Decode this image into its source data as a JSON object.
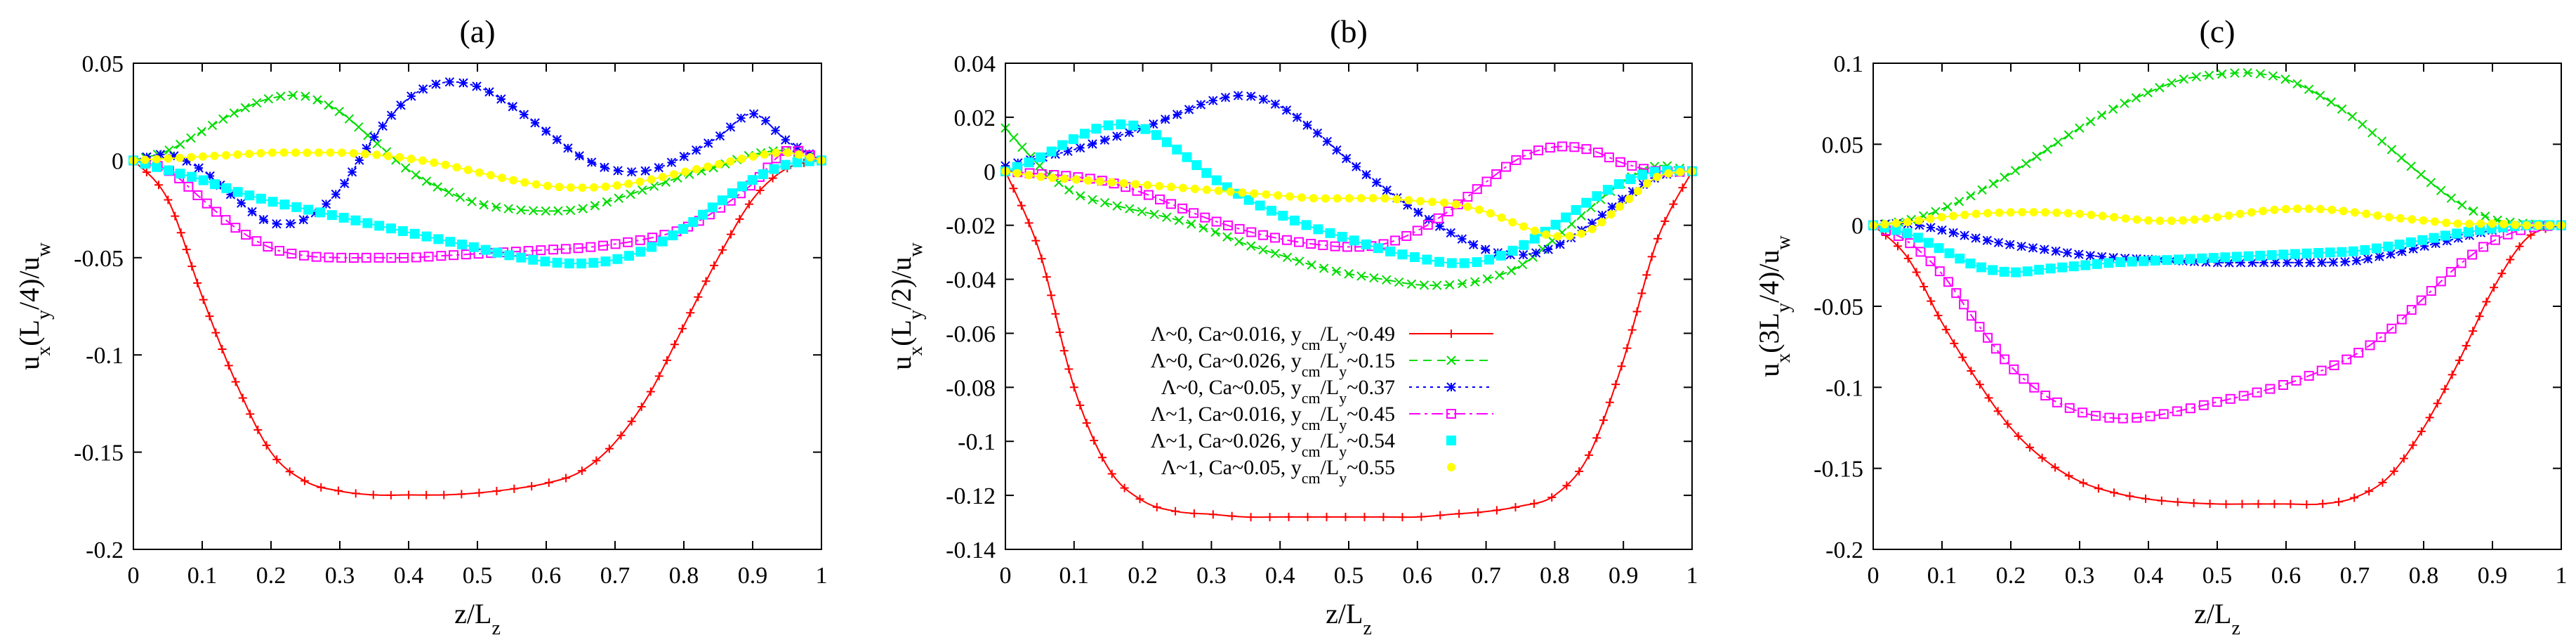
{
  "series_styles": [
    {
      "name": "Λ~0, Ca~0.016",
      "color": "#ff0000",
      "marker": "plus",
      "dash": "none"
    },
    {
      "name": "Λ~0, Ca~0.026",
      "color": "#00dd00",
      "marker": "x",
      "dash": "12,8"
    },
    {
      "name": "Λ~0, Ca~0.05",
      "color": "#0000ff",
      "marker": "star",
      "dash": "4,6"
    },
    {
      "name": "Λ~1, Ca~0.016",
      "color": "#ff00ff",
      "marker": "opensquare",
      "dash": "16,6,4,6"
    },
    {
      "name": "Λ~1, Ca~0.026",
      "color": "#00ffff",
      "marker": "filledsquare",
      "dash": "none"
    },
    {
      "name": "Λ~1, Ca~0.05",
      "color": "#ffff00",
      "marker": "circle",
      "dash": "none"
    }
  ],
  "legend_entries": [
    {
      "pre": "Λ~0, Ca~0.016, y",
      "sub": "cm",
      "mid": "/L",
      "sub2": "y",
      "post": "~0.49"
    },
    {
      "pre": "Λ~0, Ca~0.026, y",
      "sub": "cm",
      "mid": "/L",
      "sub2": "y",
      "post": "~0.15"
    },
    {
      "pre": "Λ~0, Ca~0.05, y",
      "sub": "cm",
      "mid": "/L",
      "sub2": "y",
      "post": "~0.37"
    },
    {
      "pre": "Λ~1, Ca~0.016, y",
      "sub": "cm",
      "mid": "/L",
      "sub2": "y",
      "post": "~0.45"
    },
    {
      "pre": "Λ~1, Ca~0.026, y",
      "sub": "cm",
      "mid": "/L",
      "sub2": "y",
      "post": "~0.54"
    },
    {
      "pre": "Λ~1, Ca~0.05, y",
      "sub": "cm",
      "mid": "/L",
      "sub2": "y",
      "post": "~0.55"
    }
  ],
  "chart_data": [
    {
      "type": "line",
      "title": "(a)",
      "xlabel": {
        "main": "z/L",
        "sub": "z"
      },
      "ylabel": {
        "p1": "u",
        "s1": "x",
        "p2": "(L",
        "s2": "y",
        "p3": "/4)/u",
        "s3": "w"
      },
      "xlim": [
        0,
        1
      ],
      "ylim": [
        -0.2,
        0.05
      ],
      "xticks": [
        0,
        0.1,
        0.2,
        0.3,
        0.4,
        0.5,
        0.6,
        0.7,
        0.8,
        0.9,
        1
      ],
      "xtick_labels": [
        "0",
        "0.1",
        "0.2",
        "0.3",
        "0.4",
        "0.5",
        "0.6",
        "0.7",
        "0.8",
        "0.9",
        "1"
      ],
      "yticks": [
        -0.2,
        -0.15,
        -0.1,
        -0.05,
        0,
        0.05
      ],
      "ytick_labels": [
        "-0.2",
        "-0.15",
        "-0.1",
        "-0.05",
        "0",
        "0.05"
      ],
      "x": [
        0,
        0.05,
        0.1,
        0.15,
        0.2,
        0.25,
        0.3,
        0.35,
        0.4,
        0.45,
        0.5,
        0.55,
        0.6,
        0.65,
        0.7,
        0.75,
        0.8,
        0.85,
        0.9,
        0.95,
        1
      ],
      "series": [
        {
          "values": [
            0,
            -0.02,
            -0.07,
            -0.115,
            -0.15,
            -0.165,
            -0.17,
            -0.172,
            -0.172,
            -0.172,
            -0.171,
            -0.169,
            -0.166,
            -0.16,
            -0.145,
            -0.12,
            -0.085,
            -0.05,
            -0.02,
            -0.004,
            0
          ]
        },
        {
          "values": [
            0,
            0.005,
            0.015,
            0.025,
            0.032,
            0.033,
            0.025,
            0.01,
            -0.005,
            -0.015,
            -0.022,
            -0.025,
            -0.026,
            -0.025,
            -0.02,
            -0.014,
            -0.008,
            -0.003,
            0.003,
            0.005,
            0
          ]
        },
        {
          "values": [
            0,
            0.003,
            -0.005,
            -0.02,
            -0.032,
            -0.03,
            -0.015,
            0.012,
            0.032,
            0.04,
            0.038,
            0.028,
            0.015,
            0.002,
            -0.005,
            -0.005,
            0.002,
            0.012,
            0.024,
            0.01,
            0
          ]
        },
        {
          "values": [
            0,
            -0.005,
            -0.02,
            -0.035,
            -0.045,
            -0.049,
            -0.05,
            -0.05,
            -0.05,
            -0.049,
            -0.048,
            -0.047,
            -0.046,
            -0.045,
            -0.043,
            -0.04,
            -0.035,
            -0.025,
            -0.012,
            0.005,
            0
          ]
        },
        {
          "values": [
            0,
            -0.005,
            -0.01,
            -0.016,
            -0.021,
            -0.025,
            -0.029,
            -0.033,
            -0.037,
            -0.041,
            -0.045,
            -0.049,
            -0.052,
            -0.053,
            -0.051,
            -0.045,
            -0.035,
            -0.022,
            -0.01,
            -0.002,
            0
          ]
        },
        {
          "values": [
            0,
            0.001,
            0.002,
            0.003,
            0.004,
            0.004,
            0.004,
            0.003,
            0.001,
            -0.002,
            -0.006,
            -0.01,
            -0.013,
            -0.014,
            -0.013,
            -0.01,
            -0.006,
            -0.002,
            0.002,
            0.004,
            0
          ]
        }
      ]
    },
    {
      "type": "line",
      "title": "(b)",
      "xlabel": {
        "main": "z/L",
        "sub": "z"
      },
      "ylabel": {
        "p1": "u",
        "s1": "x",
        "p2": "(L",
        "s2": "y",
        "p3": "/2)/u",
        "s3": "w"
      },
      "xlim": [
        0,
        1
      ],
      "ylim": [
        -0.14,
        0.04
      ],
      "xticks": [
        0,
        0.1,
        0.2,
        0.3,
        0.4,
        0.5,
        0.6,
        0.7,
        0.8,
        0.9,
        1
      ],
      "xtick_labels": [
        "0",
        "0.1",
        "0.2",
        "0.3",
        "0.4",
        "0.5",
        "0.6",
        "0.7",
        "0.8",
        "0.9",
        "1"
      ],
      "yticks": [
        -0.14,
        -0.12,
        -0.1,
        -0.08,
        -0.06,
        -0.04,
        -0.02,
        0,
        0.02,
        0.04
      ],
      "ytick_labels": [
        "-0.14",
        "-0.12",
        "-0.1",
        "-0.08",
        "-0.06",
        "-0.04",
        "-0.02",
        "0",
        "0.02",
        "0.04"
      ],
      "x": [
        0,
        0.05,
        0.1,
        0.15,
        0.2,
        0.25,
        0.3,
        0.35,
        0.4,
        0.45,
        0.5,
        0.55,
        0.6,
        0.65,
        0.7,
        0.75,
        0.8,
        0.85,
        0.9,
        0.95,
        1
      ],
      "series": [
        {
          "values": [
            0,
            -0.03,
            -0.08,
            -0.11,
            -0.122,
            -0.126,
            -0.127,
            -0.128,
            -0.128,
            -0.128,
            -0.128,
            -0.128,
            -0.128,
            -0.127,
            -0.126,
            -0.124,
            -0.12,
            -0.105,
            -0.07,
            -0.025,
            0
          ]
        },
        {
          "values": [
            0.016,
            0.002,
            -0.008,
            -0.012,
            -0.015,
            -0.018,
            -0.022,
            -0.027,
            -0.031,
            -0.035,
            -0.038,
            -0.04,
            -0.042,
            -0.042,
            -0.04,
            -0.035,
            -0.025,
            -0.014,
            -0.004,
            0.002,
            0
          ]
        },
        {
          "values": [
            0.002,
            0.005,
            0.008,
            0.012,
            0.016,
            0.021,
            0.026,
            0.028,
            0.024,
            0.015,
            0.004,
            -0.006,
            -0.015,
            -0.023,
            -0.029,
            -0.031,
            -0.028,
            -0.02,
            -0.01,
            -0.002,
            0
          ]
        },
        {
          "values": [
            0,
            -0.001,
            -0.002,
            -0.004,
            -0.008,
            -0.013,
            -0.018,
            -0.022,
            -0.025,
            -0.027,
            -0.028,
            -0.027,
            -0.022,
            -0.014,
            -0.004,
            0.005,
            0.009,
            0.008,
            0.003,
            0,
            0
          ]
        },
        {
          "values": [
            0,
            0.005,
            0.012,
            0.017,
            0.016,
            0.008,
            -0.002,
            -0.01,
            -0.016,
            -0.021,
            -0.025,
            -0.029,
            -0.032,
            -0.034,
            -0.033,
            -0.028,
            -0.02,
            -0.011,
            -0.004,
            0,
            0
          ]
        },
        {
          "values": [
            0,
            -0.002,
            -0.003,
            -0.004,
            -0.005,
            -0.006,
            -0.007,
            -0.008,
            -0.009,
            -0.01,
            -0.01,
            -0.01,
            -0.011,
            -0.012,
            -0.015,
            -0.02,
            -0.024,
            -0.022,
            -0.012,
            -0.002,
            0
          ]
        }
      ]
    },
    {
      "type": "line",
      "title": "(c)",
      "xlabel": {
        "main": "z/L",
        "sub": "z"
      },
      "ylabel": {
        "p1": "u",
        "s1": "x",
        "p2": "(3L",
        "s2": "y",
        "p3": "/4)/u",
        "s3": "w"
      },
      "xlim": [
        0,
        1
      ],
      "ylim": [
        -0.2,
        0.1
      ],
      "xticks": [
        0,
        0.1,
        0.2,
        0.3,
        0.4,
        0.5,
        0.6,
        0.7,
        0.8,
        0.9,
        1
      ],
      "xtick_labels": [
        "0",
        "0.1",
        "0.2",
        "0.3",
        "0.4",
        "0.5",
        "0.6",
        "0.7",
        "0.8",
        "0.9",
        "1"
      ],
      "yticks": [
        -0.2,
        -0.15,
        -0.1,
        -0.05,
        0,
        0.05,
        0.1
      ],
      "ytick_labels": [
        "-0.2",
        "-0.15",
        "-0.1",
        "-0.05",
        "0",
        "0.05",
        "0.1"
      ],
      "x": [
        0,
        0.05,
        0.1,
        0.15,
        0.2,
        0.25,
        0.3,
        0.35,
        0.4,
        0.45,
        0.5,
        0.55,
        0.6,
        0.65,
        0.7,
        0.75,
        0.8,
        0.85,
        0.9,
        0.95,
        1
      ],
      "series": [
        {
          "values": [
            0,
            -0.02,
            -0.06,
            -0.095,
            -0.125,
            -0.145,
            -0.158,
            -0.165,
            -0.169,
            -0.171,
            -0.172,
            -0.172,
            -0.172,
            -0.172,
            -0.168,
            -0.155,
            -0.125,
            -0.085,
            -0.04,
            -0.008,
            0
          ]
        },
        {
          "values": [
            0,
            0.003,
            0.01,
            0.02,
            0.032,
            0.046,
            0.06,
            0.072,
            0.082,
            0.09,
            0.093,
            0.094,
            0.09,
            0.08,
            0.066,
            0.048,
            0.03,
            0.014,
            0.004,
            0.001,
            0
          ]
        },
        {
          "values": [
            0,
            0.001,
            -0.003,
            -0.008,
            -0.012,
            -0.015,
            -0.018,
            -0.02,
            -0.021,
            -0.022,
            -0.023,
            -0.023,
            -0.023,
            -0.023,
            -0.022,
            -0.018,
            -0.013,
            -0.008,
            -0.003,
            0,
            0
          ]
        },
        {
          "values": [
            0,
            -0.01,
            -0.03,
            -0.06,
            -0.087,
            -0.105,
            -0.115,
            -0.119,
            -0.118,
            -0.114,
            -0.109,
            -0.104,
            -0.098,
            -0.09,
            -0.08,
            -0.065,
            -0.045,
            -0.025,
            -0.01,
            -0.002,
            0
          ]
        },
        {
          "values": [
            0,
            -0.005,
            -0.015,
            -0.025,
            -0.029,
            -0.027,
            -0.025,
            -0.023,
            -0.022,
            -0.021,
            -0.02,
            -0.019,
            -0.018,
            -0.017,
            -0.016,
            -0.013,
            -0.009,
            -0.005,
            -0.002,
            0,
            0
          ]
        },
        {
          "values": [
            0,
            0.002,
            0.005,
            0.007,
            0.008,
            0.008,
            0.007,
            0.005,
            0.003,
            0.003,
            0.005,
            0.008,
            0.01,
            0.01,
            0.008,
            0.005,
            0.003,
            0.001,
            0.001,
            0,
            0
          ]
        }
      ]
    }
  ]
}
